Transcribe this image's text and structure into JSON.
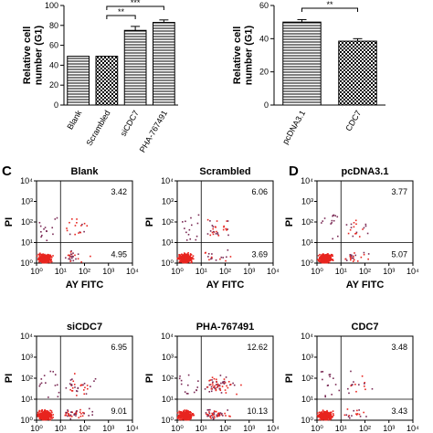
{
  "chart_data": [
    {
      "type": "bar",
      "categories": [
        "Blank",
        "Scrambled",
        "siCDC7",
        "PHA-767491"
      ],
      "values": [
        49,
        49,
        75,
        83
      ],
      "errors": [
        0,
        0,
        4,
        2.5
      ],
      "ylabel": "Relative cell number (G1)",
      "ylabel_lines": [
        "Relative cell",
        "number (G1)"
      ],
      "ylim": [
        0,
        100
      ],
      "yticks": [
        "0",
        "20",
        "40",
        "60",
        "80",
        "100"
      ],
      "patterns": [
        "horizontal-lines",
        "checker",
        "horizontal-lines",
        "horizontal-lines"
      ],
      "significance": [
        {
          "from": 1,
          "to": 2,
          "label": "**"
        },
        {
          "from": 1,
          "to": 3,
          "label": "***"
        }
      ]
    },
    {
      "type": "bar",
      "categories": [
        "pcDNA3.1",
        "CDC7"
      ],
      "values": [
        50,
        38.5
      ],
      "errors": [
        1.5,
        1.5
      ],
      "ylabel": "Relative cell number (G1)",
      "ylabel_lines": [
        "Relative cell",
        "number (G1)"
      ],
      "ylim": [
        0,
        60
      ],
      "yticks": [
        "0",
        "20",
        "40",
        "60"
      ],
      "patterns": [
        "horizontal-lines",
        "checker"
      ],
      "significance": [
        {
          "from": 0,
          "to": 1,
          "label": "**"
        }
      ]
    },
    {
      "type": "scatter",
      "panel_letter": "C",
      "xlabel": "AY FITC",
      "ylabel": "PI",
      "log_axes": true,
      "xticks": [
        "10⁰",
        "10¹",
        "10²",
        "10³",
        "10⁴"
      ],
      "yticks": [
        "10⁰",
        "10¹",
        "10²",
        "10³",
        "10⁴"
      ],
      "gate": {
        "x": 10,
        "y": 10
      },
      "plots": [
        {
          "title": "Blank",
          "upper_right": "3.42",
          "lower_right": "4.95"
        },
        {
          "title": "Scrambled",
          "upper_right": "6.06",
          "lower_right": "3.69"
        },
        {
          "title": "siCDC7",
          "upper_right": "6.95",
          "lower_right": "9.01"
        },
        {
          "title": "PHA-767491",
          "upper_right": "12.62",
          "lower_right": "10.13"
        }
      ]
    },
    {
      "type": "scatter",
      "panel_letter": "D",
      "xlabel": "AY FITC",
      "ylabel": "PI",
      "log_axes": true,
      "xticks": [
        "10⁰",
        "10¹",
        "10²",
        "10³",
        "10⁴"
      ],
      "yticks": [
        "10⁰",
        "10¹",
        "10²",
        "10³",
        "10⁴"
      ],
      "gate": {
        "x": 10,
        "y": 10
      },
      "plots": [
        {
          "title": "pcDNA3.1",
          "upper_right": "3.77",
          "lower_right": "5.07"
        },
        {
          "title": "CDC7",
          "upper_right": "3.48",
          "lower_right": "3.43"
        }
      ]
    }
  ],
  "colors": {
    "ink": "#000000",
    "dot_dense": "#e8251f",
    "dot_sparse": "#7a2a55",
    "bar_fill": "#ffffff"
  }
}
